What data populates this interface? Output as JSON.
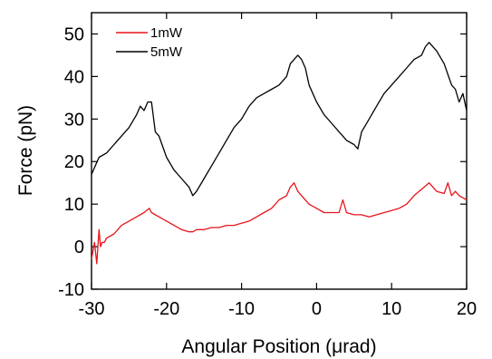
{
  "chart_data": {
    "type": "line",
    "xlabel": "Angular Position (μrad)",
    "ylabel": "Force (pN)",
    "xlim": [
      -30,
      20
    ],
    "ylim": [
      -10,
      55
    ],
    "xticks": [
      -30,
      -20,
      -10,
      0,
      10,
      20
    ],
    "yticks": [
      -10,
      0,
      10,
      20,
      30,
      40,
      50
    ],
    "grid": false,
    "legend": "top-left",
    "series": [
      {
        "name": "1mW",
        "color": "#e8141b",
        "x": [
          -30,
          -29.6,
          -29.3,
          -29.0,
          -28.8,
          -28.6,
          -28.3,
          -28,
          -27,
          -26,
          -25,
          -24,
          -23,
          -22.3,
          -22,
          -21,
          -20,
          -19,
          -18,
          -17,
          -16.5,
          -16,
          -15,
          -14,
          -13,
          -12,
          -11,
          -10,
          -9,
          -8,
          -7,
          -6,
          -5,
          -4,
          -3.5,
          -3,
          -2.5,
          -2,
          -1,
          0,
          1,
          2,
          3,
          3.5,
          4,
          5,
          6,
          7,
          8,
          9,
          10,
          11,
          12,
          13,
          14,
          15,
          16,
          17,
          17.5,
          18,
          18.5,
          19,
          20
        ],
        "y": [
          -3,
          1,
          -4,
          4,
          0,
          1,
          1,
          2,
          3,
          5,
          6,
          7,
          8,
          9,
          8,
          7,
          6,
          5,
          4,
          3.5,
          3.5,
          4,
          4,
          4.5,
          4.5,
          5,
          5,
          5.5,
          6,
          7,
          8,
          9,
          11,
          12,
          14,
          15,
          13,
          12,
          10,
          9,
          8,
          8,
          8,
          11,
          8,
          7.5,
          7.5,
          7,
          7.5,
          8,
          8.5,
          9,
          10,
          12,
          13.5,
          15,
          13,
          12.5,
          15,
          12,
          13,
          12,
          11
        ]
      },
      {
        "name": "5mW",
        "color": "#000000",
        "x": [
          -30,
          -29,
          -28,
          -27,
          -26,
          -25,
          -24,
          -23.5,
          -23,
          -22.5,
          -22,
          -21.5,
          -21,
          -20,
          -19,
          -18,
          -17,
          -16.5,
          -16,
          -15,
          -14,
          -13,
          -12,
          -11,
          -10,
          -9,
          -8,
          -7,
          -6,
          -5,
          -4,
          -3.5,
          -3,
          -2.5,
          -2,
          -1.5,
          -1,
          0,
          1,
          2,
          3,
          4,
          5,
          5.5,
          6,
          7,
          8,
          9,
          10,
          11,
          12,
          13,
          14,
          14.5,
          15,
          16,
          17,
          18,
          18.5,
          19,
          19.5,
          20
        ],
        "y": [
          17,
          21,
          22,
          24,
          26,
          28,
          31,
          33,
          32,
          34,
          34,
          27,
          26,
          21,
          18,
          16,
          14,
          12,
          13,
          16,
          19,
          22,
          25,
          28,
          30,
          33,
          35,
          36,
          37,
          38,
          40,
          43,
          44,
          45,
          44,
          42,
          38,
          34,
          31,
          29,
          27,
          25,
          24,
          23,
          27,
          30,
          33,
          36,
          38,
          40,
          42,
          44,
          45,
          47,
          48,
          46,
          43,
          38,
          37,
          34,
          36,
          32
        ]
      }
    ]
  }
}
